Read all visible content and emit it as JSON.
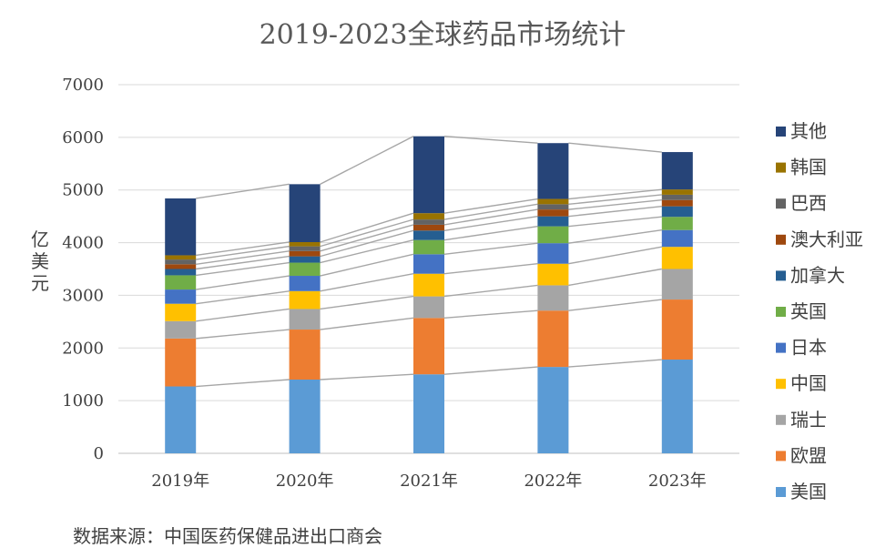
{
  "chart_data": {
    "type": "bar",
    "stacked": true,
    "title": "2019-2023全球药品市场统计",
    "xlabel": "",
    "ylabel": "亿美元",
    "ylim": [
      0,
      7000
    ],
    "yticks": [
      0,
      1000,
      2000,
      3000,
      4000,
      5000,
      6000,
      7000
    ],
    "grid": true,
    "legend_position": "right",
    "source_text": "数据来源：中国医药保健品进出口商会",
    "categories": [
      "2019年",
      "2020年",
      "2021年",
      "2022年",
      "2023年"
    ],
    "series": [
      {
        "name": "美国",
        "color": "#5b9bd5",
        "values": [
          1270,
          1400,
          1500,
          1640,
          1780
        ]
      },
      {
        "name": "欧盟",
        "color": "#ed7d31",
        "values": [
          910,
          950,
          1070,
          1070,
          1140
        ]
      },
      {
        "name": "瑞士",
        "color": "#a5a5a5",
        "values": [
          330,
          390,
          410,
          480,
          580
        ]
      },
      {
        "name": "中国",
        "color": "#ffc000",
        "values": [
          330,
          340,
          430,
          410,
          420
        ]
      },
      {
        "name": "日本",
        "color": "#4472c4",
        "values": [
          270,
          290,
          370,
          390,
          320
        ]
      },
      {
        "name": "英国",
        "color": "#70ad47",
        "values": [
          270,
          250,
          270,
          320,
          250
        ]
      },
      {
        "name": "加拿大",
        "color": "#255e91",
        "values": [
          120,
          120,
          180,
          190,
          200
        ]
      },
      {
        "name": "澳大利亚",
        "color": "#9e480e",
        "values": [
          90,
          100,
          110,
          130,
          120
        ]
      },
      {
        "name": "巴西",
        "color": "#636363",
        "values": [
          90,
          90,
          100,
          100,
          100
        ]
      },
      {
        "name": "韩国",
        "color": "#997300",
        "values": [
          80,
          80,
          120,
          100,
          100
        ]
      },
      {
        "name": "其他",
        "color": "#264478",
        "values": [
          1080,
          1100,
          1460,
          1060,
          710
        ]
      }
    ],
    "connector_color": "#a6a6a6"
  }
}
